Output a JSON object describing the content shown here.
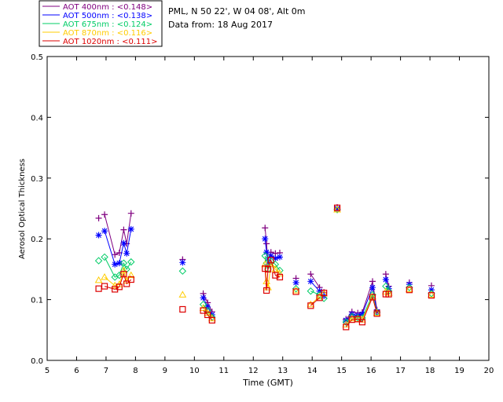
{
  "chart_data": {
    "type": "scatter",
    "title_lines": [
      "PML, N 50 22', W 04 08', Alt 0m",
      "Data from: 18 Aug 2017"
    ],
    "xlabel": "Time (GMT)",
    "ylabel": "Aerosol Optical Thickness",
    "xlim": [
      5,
      20
    ],
    "ylim": [
      0,
      0.5
    ],
    "xticks": [
      "5",
      "6",
      "7",
      "8",
      "9",
      "10",
      "11",
      "12",
      "13",
      "14",
      "15",
      "16",
      "17",
      "18",
      "19",
      "20"
    ],
    "yticks": [
      "0.0",
      "0.1",
      "0.2",
      "0.3",
      "0.4",
      "0.5"
    ],
    "legend_position": "top-left",
    "grid": false,
    "series": [
      {
        "name": "AOT  400nm : <0.148>",
        "color": "#800080",
        "marker": "plus",
        "points": [
          [
            6.75,
            0.234
          ],
          [
            6.95,
            0.24
          ],
          [
            7.3,
            0.174
          ],
          [
            7.45,
            0.177
          ],
          [
            7.6,
            0.215
          ],
          [
            7.7,
            0.192
          ],
          [
            7.85,
            0.242
          ],
          [
            9.6,
            0.166
          ],
          [
            10.3,
            0.11
          ],
          [
            10.45,
            0.095
          ],
          [
            10.6,
            0.08
          ],
          [
            12.4,
            0.218
          ],
          [
            12.45,
            0.192
          ],
          [
            12.5,
            0.165
          ],
          [
            12.6,
            0.178
          ],
          [
            12.75,
            0.176
          ],
          [
            12.9,
            0.177
          ],
          [
            13.45,
            0.135
          ],
          [
            13.95,
            0.142
          ],
          [
            14.25,
            0.12
          ],
          [
            14.4,
            0.112
          ],
          [
            14.85,
            0.252
          ],
          [
            15.15,
            0.068
          ],
          [
            15.35,
            0.08
          ],
          [
            15.55,
            0.078
          ],
          [
            15.7,
            0.079
          ],
          [
            16.05,
            0.13
          ],
          [
            16.2,
            0.083
          ],
          [
            16.5,
            0.142
          ],
          [
            16.6,
            0.122
          ],
          [
            17.3,
            0.128
          ],
          [
            18.05,
            0.123
          ]
        ],
        "segments": [
          [
            1,
            2,
            3,
            4,
            5,
            6
          ],
          [
            8,
            9,
            10
          ],
          [
            11,
            12,
            13,
            14,
            15,
            16
          ],
          [
            18,
            19
          ],
          [
            22,
            23,
            24,
            25,
            26,
            27
          ],
          [
            28,
            29
          ]
        ]
      },
      {
        "name": "AOT  500nm : <0.138>",
        "color": "#0000ff",
        "marker": "star",
        "points": [
          [
            6.75,
            0.206
          ],
          [
            6.95,
            0.213
          ],
          [
            7.3,
            0.158
          ],
          [
            7.45,
            0.16
          ],
          [
            7.6,
            0.193
          ],
          [
            7.7,
            0.176
          ],
          [
            7.85,
            0.216
          ],
          [
            9.6,
            0.161
          ],
          [
            10.3,
            0.103
          ],
          [
            10.45,
            0.088
          ],
          [
            10.6,
            0.075
          ],
          [
            12.4,
            0.2
          ],
          [
            12.45,
            0.178
          ],
          [
            12.5,
            0.155
          ],
          [
            12.6,
            0.172
          ],
          [
            12.75,
            0.168
          ],
          [
            12.9,
            0.17
          ],
          [
            13.45,
            0.128
          ],
          [
            13.95,
            0.13
          ],
          [
            14.25,
            0.114
          ],
          [
            14.4,
            0.106
          ],
          [
            14.85,
            0.25
          ],
          [
            15.15,
            0.066
          ],
          [
            15.35,
            0.076
          ],
          [
            15.55,
            0.074
          ],
          [
            15.7,
            0.076
          ],
          [
            16.05,
            0.12
          ],
          [
            16.2,
            0.08
          ],
          [
            16.5,
            0.133
          ],
          [
            16.6,
            0.118
          ],
          [
            17.3,
            0.125
          ],
          [
            18.05,
            0.116
          ]
        ],
        "segments": [
          [
            1,
            2,
            3,
            4,
            5,
            6
          ],
          [
            8,
            9,
            10
          ],
          [
            11,
            12,
            13,
            14,
            15,
            16
          ],
          [
            18,
            19
          ],
          [
            22,
            23,
            24,
            25,
            26,
            27
          ],
          [
            28,
            29
          ]
        ]
      },
      {
        "name": "AOT  675nm : <0.124>",
        "color": "#00cc66",
        "marker": "diamond",
        "points": [
          [
            6.75,
            0.164
          ],
          [
            6.95,
            0.17
          ],
          [
            7.3,
            0.137
          ],
          [
            7.45,
            0.14
          ],
          [
            7.6,
            0.16
          ],
          [
            7.7,
            0.15
          ],
          [
            7.85,
            0.162
          ],
          [
            9.6,
            0.147
          ],
          [
            10.3,
            0.092
          ],
          [
            10.45,
            0.082
          ],
          [
            10.6,
            0.071
          ],
          [
            12.4,
            0.172
          ],
          [
            12.45,
            0.16
          ],
          [
            12.5,
            0.15
          ],
          [
            12.6,
            0.163
          ],
          [
            12.75,
            0.158
          ],
          [
            12.9,
            0.148
          ],
          [
            13.45,
            0.118
          ],
          [
            13.95,
            0.114
          ],
          [
            14.25,
            0.108
          ],
          [
            14.4,
            0.102
          ],
          [
            14.85,
            0.248
          ],
          [
            15.15,
            0.063
          ],
          [
            15.35,
            0.072
          ],
          [
            15.55,
            0.07
          ],
          [
            15.7,
            0.07
          ],
          [
            16.05,
            0.108
          ],
          [
            16.2,
            0.079
          ],
          [
            16.5,
            0.122
          ],
          [
            16.6,
            0.114
          ],
          [
            17.3,
            0.12
          ],
          [
            18.05,
            0.11
          ]
        ],
        "segments": [
          [
            1,
            2,
            3,
            4,
            5,
            6
          ],
          [
            8,
            9,
            10
          ],
          [
            11,
            12,
            13,
            14,
            15,
            16
          ],
          [
            18,
            19
          ],
          [
            22,
            23,
            24,
            25,
            26,
            27
          ],
          [
            28,
            29
          ]
        ]
      },
      {
        "name": "AOT  870nm : <0.116>",
        "color": "#ffcc00",
        "marker": "triangle",
        "points": [
          [
            6.75,
            0.132
          ],
          [
            6.95,
            0.137
          ],
          [
            7.3,
            0.123
          ],
          [
            7.45,
            0.125
          ],
          [
            7.6,
            0.148
          ],
          [
            7.7,
            0.131
          ],
          [
            7.85,
            0.14
          ],
          [
            9.6,
            0.108
          ],
          [
            10.3,
            0.086
          ],
          [
            10.45,
            0.078
          ],
          [
            10.6,
            0.069
          ],
          [
            12.4,
            0.158
          ],
          [
            12.45,
            0.13
          ],
          [
            12.5,
            0.12
          ],
          [
            12.6,
            0.158
          ],
          [
            12.75,
            0.15
          ],
          [
            12.9,
            0.143
          ],
          [
            13.45,
            0.115
          ],
          [
            13.95,
            0.092
          ],
          [
            14.25,
            0.105
          ],
          [
            14.4,
            0.11
          ],
          [
            14.85,
            0.248
          ],
          [
            15.15,
            0.059
          ],
          [
            15.35,
            0.069
          ],
          [
            15.55,
            0.068
          ],
          [
            15.7,
            0.067
          ],
          [
            16.05,
            0.105
          ],
          [
            16.2,
            0.078
          ],
          [
            16.5,
            0.113
          ],
          [
            16.6,
            0.111
          ],
          [
            17.3,
            0.117
          ],
          [
            18.05,
            0.108
          ]
        ],
        "segments": [
          [
            1,
            2,
            3,
            4,
            5,
            6
          ],
          [
            8,
            9,
            10
          ],
          [
            11,
            12,
            13,
            14,
            15,
            16
          ],
          [
            18,
            19
          ],
          [
            22,
            23,
            24,
            25,
            26,
            27
          ],
          [
            28,
            29
          ]
        ]
      },
      {
        "name": "AOT 1020nm : <0.111>",
        "color": "#dd0000",
        "marker": "square",
        "points": [
          [
            6.75,
            0.118
          ],
          [
            6.95,
            0.122
          ],
          [
            7.3,
            0.117
          ],
          [
            7.45,
            0.121
          ],
          [
            7.6,
            0.142
          ],
          [
            7.7,
            0.126
          ],
          [
            7.85,
            0.133
          ],
          [
            9.6,
            0.084
          ],
          [
            10.3,
            0.082
          ],
          [
            10.45,
            0.075
          ],
          [
            10.6,
            0.066
          ],
          [
            12.4,
            0.151
          ],
          [
            12.45,
            0.115
          ],
          [
            12.5,
            0.15
          ],
          [
            12.6,
            0.165
          ],
          [
            12.75,
            0.14
          ],
          [
            12.9,
            0.137
          ],
          [
            13.45,
            0.113
          ],
          [
            13.95,
            0.09
          ],
          [
            14.25,
            0.103
          ],
          [
            14.4,
            0.111
          ],
          [
            14.85,
            0.251
          ],
          [
            15.15,
            0.055
          ],
          [
            15.35,
            0.067
          ],
          [
            15.55,
            0.068
          ],
          [
            15.7,
            0.063
          ],
          [
            16.05,
            0.104
          ],
          [
            16.2,
            0.077
          ],
          [
            16.5,
            0.109
          ],
          [
            16.6,
            0.109
          ],
          [
            17.3,
            0.116
          ],
          [
            18.05,
            0.107
          ]
        ],
        "segments": [
          [
            1,
            2,
            3,
            4,
            5,
            6
          ],
          [
            8,
            9,
            10
          ],
          [
            11,
            12,
            13,
            14,
            15,
            16
          ],
          [
            18,
            19
          ],
          [
            22,
            23,
            24,
            25,
            26,
            27
          ],
          [
            28,
            29
          ]
        ]
      }
    ]
  }
}
